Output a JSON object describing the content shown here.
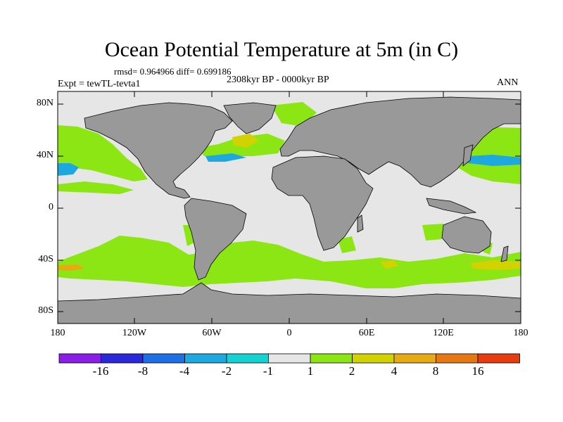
{
  "title": "Ocean Potential Temperature at 5m (in C)",
  "stats": "rmsd= 0.964966 diff= 0.699186",
  "period": "2308kyr BP - 0000kyr BP",
  "experiment": "Expt = tewTL-tevta1",
  "season": "ANN",
  "lat_labels": [
    "80N",
    "40N",
    "0",
    "40S",
    "80S"
  ],
  "lon_labels": [
    "180",
    "120W",
    "60W",
    "0",
    "60E",
    "120E",
    "180"
  ],
  "colorbar": {
    "colors": [
      "#8b1ee6",
      "#2a28d8",
      "#1e6ee6",
      "#1ea8e0",
      "#14d2d2",
      "#e6e6e6",
      "#8ce614",
      "#d2d200",
      "#e6aa14",
      "#e67814",
      "#e63c0f"
    ],
    "labels": [
      "-16",
      "-8",
      "-4",
      "-2",
      "-1",
      "1",
      "2",
      "4",
      "8",
      "16"
    ]
  },
  "map_colors": {
    "land": "#999999",
    "ocean_neutral": "#e6e6e6",
    "warm_1_2": "#8ce614",
    "warm_2_4": "#d2d200",
    "warm_4_8": "#e6aa14",
    "cool_1_2": "#14d2d2",
    "cool_2_4": "#1ea8e0"
  }
}
